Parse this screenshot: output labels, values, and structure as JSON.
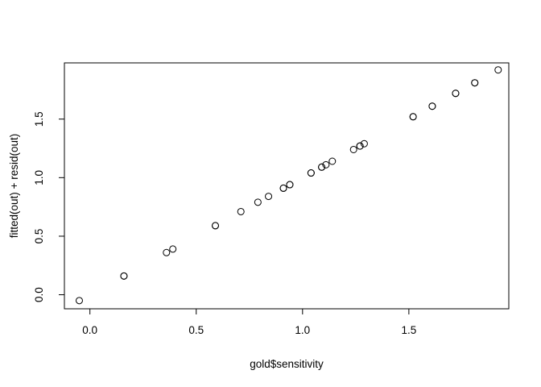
{
  "chart_data": {
    "type": "scatter",
    "title": "",
    "xlabel": "gold$sensitivity",
    "ylabel": "fitted(out) + resid(out)",
    "xlim": [
      -0.12,
      1.97
    ],
    "ylim": [
      -0.12,
      1.98
    ],
    "x_ticks": [
      0.0,
      0.5,
      1.0,
      1.5
    ],
    "x_tick_labels": [
      "0.0",
      "0.5",
      "1.0",
      "1.5"
    ],
    "y_ticks": [
      0.0,
      0.5,
      1.0,
      1.5
    ],
    "y_tick_labels": [
      "0.0",
      "0.5",
      "1.0",
      "1.5"
    ],
    "grid": false,
    "legend": "none",
    "marker": "open-circle",
    "point_color": "#000000",
    "series": [
      {
        "x": [
          -0.05,
          0.16,
          0.16,
          0.36,
          0.39,
          0.59,
          0.59,
          0.71,
          0.79,
          0.84,
          0.91,
          0.91,
          0.94,
          0.94,
          1.04,
          1.04,
          1.09,
          1.09,
          1.11,
          1.14,
          1.24,
          1.27,
          1.27,
          1.29,
          1.52,
          1.52,
          1.61,
          1.61,
          1.72,
          1.72,
          1.81,
          1.81,
          1.92
        ],
        "y": [
          -0.05,
          0.16,
          0.16,
          0.36,
          0.39,
          0.59,
          0.59,
          0.71,
          0.79,
          0.84,
          0.91,
          0.91,
          0.94,
          0.94,
          1.04,
          1.04,
          1.09,
          1.09,
          1.11,
          1.14,
          1.24,
          1.27,
          1.27,
          1.29,
          1.52,
          1.52,
          1.61,
          1.61,
          1.72,
          1.72,
          1.81,
          1.81,
          1.92
        ]
      }
    ]
  }
}
